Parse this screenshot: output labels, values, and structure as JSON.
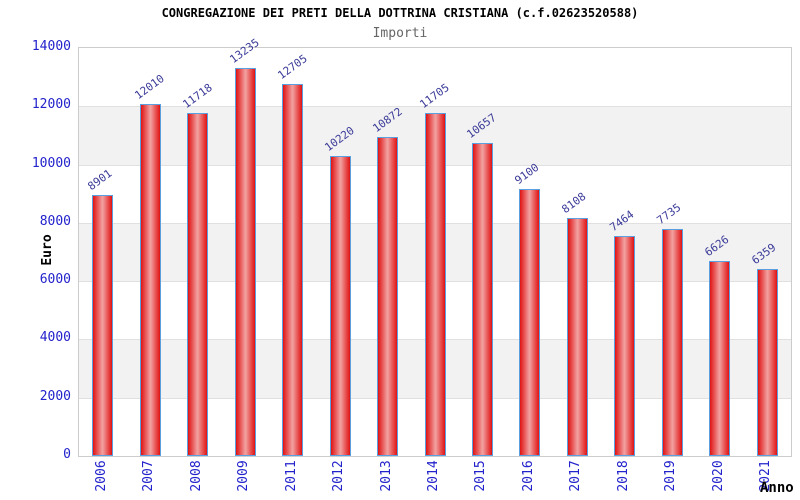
{
  "chart_data": {
    "type": "bar",
    "title": "CONGREGAZIONE DEI PRETI DELLA DOTTRINA CRISTIANA (c.f.02623520588)",
    "subtitle": "Importi",
    "xlabel": "Anno",
    "ylabel": "Euro",
    "categories": [
      "2006",
      "2007",
      "2008",
      "2009",
      "2011",
      "2012",
      "2013",
      "2014",
      "2015",
      "2016",
      "2017",
      "2018",
      "2019",
      "2020",
      "2021"
    ],
    "values": [
      8901,
      12010,
      11718,
      13235,
      12705,
      10220,
      10872,
      11705,
      10657,
      9100,
      8108,
      7464,
      7735,
      6626,
      6359
    ],
    "ylim": [
      0,
      14000
    ],
    "yticks": [
      0,
      2000,
      4000,
      6000,
      8000,
      10000,
      12000,
      14000
    ],
    "value_labels_shown": true,
    "legend_position": "none",
    "grid": "alternating horizontal bands",
    "colors": {
      "title": "#000000",
      "subtitle": "#666666",
      "axis_tick": "#2222cc",
      "value_label": "#3b3b99",
      "bar_fill": "#e01212",
      "bar_fill_light": "#f2a2a2",
      "bar_border": "#5aa0e0",
      "band": "#f2f2f2",
      "plot_border": "#cccccc",
      "gridline": "#e0e0e0"
    }
  }
}
